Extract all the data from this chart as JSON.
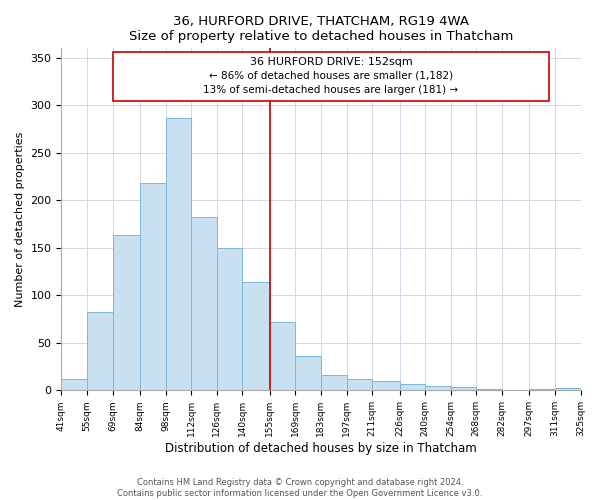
{
  "title": "36, HURFORD DRIVE, THATCHAM, RG19 4WA",
  "subtitle": "Size of property relative to detached houses in Thatcham",
  "xlabel": "Distribution of detached houses by size in Thatcham",
  "ylabel": "Number of detached properties",
  "bin_labels": [
    "41sqm",
    "55sqm",
    "69sqm",
    "84sqm",
    "98sqm",
    "112sqm",
    "126sqm",
    "140sqm",
    "155sqm",
    "169sqm",
    "183sqm",
    "197sqm",
    "211sqm",
    "226sqm",
    "240sqm",
    "254sqm",
    "268sqm",
    "282sqm",
    "297sqm",
    "311sqm",
    "325sqm"
  ],
  "bar_heights": [
    12,
    82,
    163,
    218,
    287,
    182,
    150,
    114,
    72,
    36,
    16,
    12,
    10,
    7,
    5,
    3,
    1,
    0,
    1,
    2
  ],
  "bar_color": "#c8e0f0",
  "bar_edge_color": "#7ab8d8",
  "property_line_label": "36 HURFORD DRIVE: 152sqm",
  "annotation_line1": "← 86% of detached houses are smaller (1,182)",
  "annotation_line2": "13% of semi-detached houses are larger (181) →",
  "line_color": "#cc0000",
  "box_edge_color": "#cc0000",
  "ylim": [
    0,
    360
  ],
  "yticks": [
    0,
    50,
    100,
    150,
    200,
    250,
    300,
    350
  ],
  "footer_line1": "Contains HM Land Registry data © Crown copyright and database right 2024.",
  "footer_line2": "Contains public sector information licensed under the Open Government Licence v3.0.",
  "bg_color": "#ffffff",
  "grid_color": "#d0d8e8"
}
